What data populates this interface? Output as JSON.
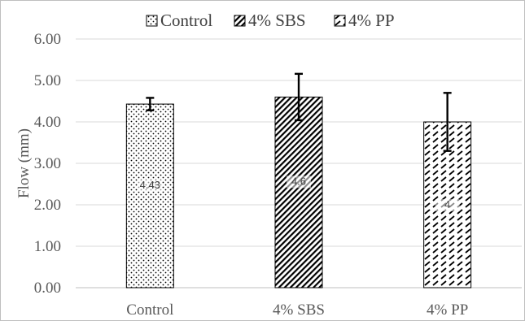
{
  "chart_data": {
    "type": "bar",
    "title": "",
    "xlabel": "",
    "ylabel": "Flow (mm)",
    "ylim": [
      0,
      6
    ],
    "y_ticks": [
      "0.00",
      "1.00",
      "2.00",
      "3.00",
      "4.00",
      "5.00",
      "6.00"
    ],
    "grid": true,
    "legend_position": "top",
    "categories": [
      "Control",
      "4% SBS",
      "4% PP"
    ],
    "values": [
      4.43,
      4.6,
      4.0
    ],
    "data_labels": [
      "4.43",
      "4.6",
      "4"
    ],
    "error_bars": [
      {
        "low": 4.28,
        "high": 4.58
      },
      {
        "low": 4.04,
        "high": 5.16
      },
      {
        "low": 3.3,
        "high": 4.7
      }
    ],
    "legend": [
      {
        "label": "Control",
        "pattern": "dots"
      },
      {
        "label": "4% SBS",
        "pattern": "diagonal-dense"
      },
      {
        "label": "4% PP",
        "pattern": "diagonal-dashes"
      }
    ]
  }
}
